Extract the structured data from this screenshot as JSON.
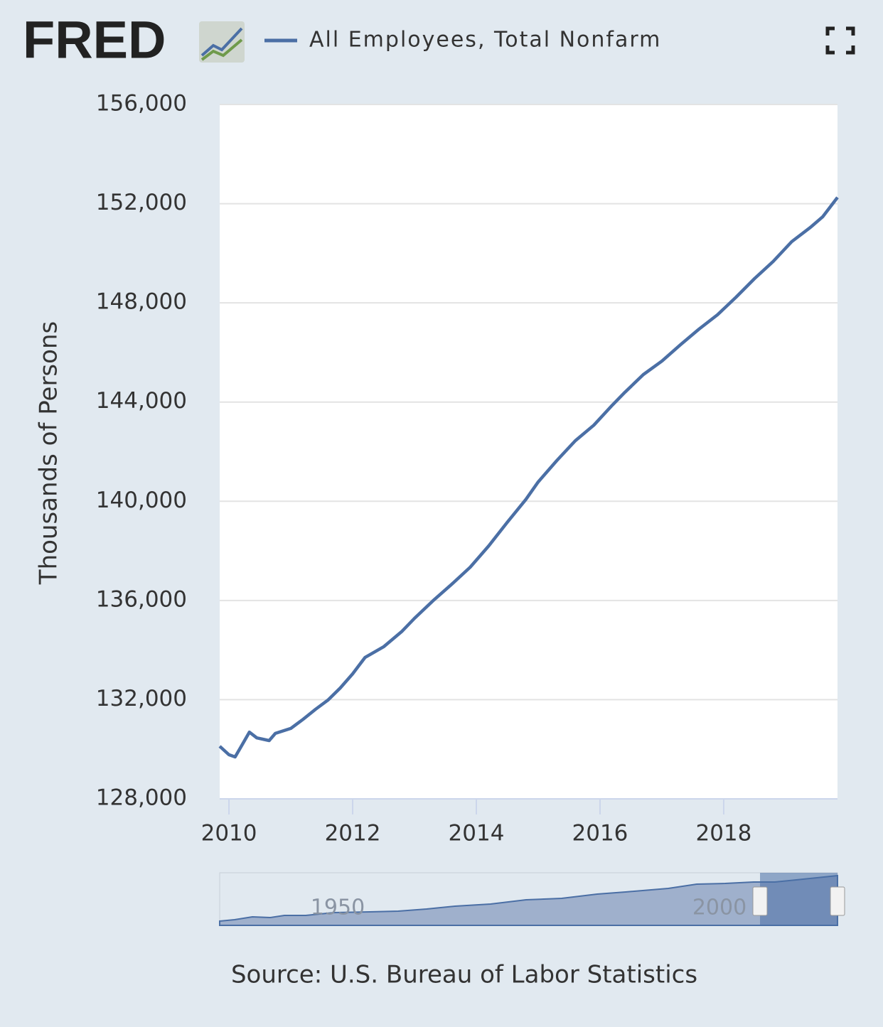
{
  "logo": "FRED",
  "chart_data": {
    "type": "line",
    "y_label": "Thousands of Persons",
    "source": "Source: U.S. Bureau of Labor Statistics",
    "series": [
      {
        "name": "All Employees, Total Nonfarm",
        "color": "#4b6fa5",
        "x": [
          2009.85,
          2010.0,
          2010.1,
          2010.2,
          2010.33,
          2010.45,
          2010.65,
          2010.75,
          2011.0,
          2011.2,
          2011.4,
          2011.6,
          2011.8,
          2012.0,
          2012.2,
          2012.5,
          2012.8,
          2013.0,
          2013.3,
          2013.6,
          2013.9,
          2014.2,
          2014.5,
          2014.8,
          2015.0,
          2015.3,
          2015.6,
          2015.9,
          2016.2,
          2016.4,
          2016.7,
          2017.0,
          2017.3,
          2017.6,
          2017.9,
          2018.2,
          2018.5,
          2018.8,
          2019.1,
          2019.4,
          2019.6,
          2019.84
        ],
        "values": [
          130120,
          129780,
          129690,
          130120,
          130690,
          130460,
          130350,
          130640,
          130840,
          131210,
          131610,
          131980,
          132470,
          133040,
          133700,
          134130,
          134760,
          135280,
          135990,
          136650,
          137340,
          138200,
          139150,
          140070,
          140780,
          141640,
          142440,
          143070,
          143880,
          144390,
          145110,
          145650,
          146310,
          146940,
          147520,
          148230,
          148980,
          149670,
          150470,
          151040,
          151470,
          152250
        ]
      }
    ],
    "xlim": [
      2009.85,
      2019.84
    ],
    "xticks": [
      2010,
      2012,
      2014,
      2016,
      2018
    ],
    "ylim": [
      128000,
      156000
    ],
    "yticks": [
      {
        "value": 128000,
        "label": "128,000"
      },
      {
        "value": 132000,
        "label": "132,000"
      },
      {
        "value": 136000,
        "label": "136,000"
      },
      {
        "value": 140000,
        "label": "140,000"
      },
      {
        "value": 144000,
        "label": "144,000"
      },
      {
        "value": 148000,
        "label": "148,000"
      },
      {
        "value": 152000,
        "label": "152,000"
      },
      {
        "value": 156000,
        "label": "156,000"
      }
    ],
    "grid": true,
    "navigator_labels": [
      "1950",
      "2000"
    ]
  }
}
